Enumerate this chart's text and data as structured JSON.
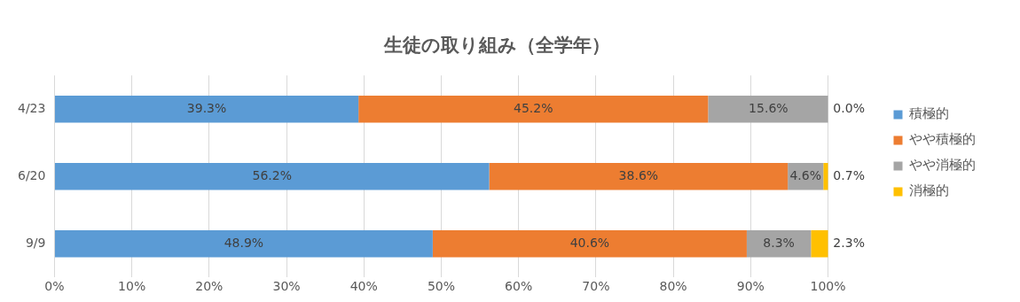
{
  "chart_data": {
    "type": "bar",
    "orientation": "horizontal",
    "stacked": true,
    "title": "生徒の取り組み（全学年）",
    "categories": [
      "4/23",
      "6/20",
      "9/9"
    ],
    "series": [
      {
        "name": "積極的",
        "color": "#5b9bd5",
        "values": [
          39.3,
          56.2,
          48.9
        ],
        "value_labels": [
          "39.3%",
          "56.2%",
          "48.9%"
        ]
      },
      {
        "name": "やや積極的",
        "color": "#ed7d31",
        "values": [
          45.2,
          38.6,
          40.6
        ],
        "value_labels": [
          "45.2%",
          "38.6%",
          "40.6%"
        ]
      },
      {
        "name": "やや消極的",
        "color": "#a5a5a5",
        "values": [
          15.6,
          4.6,
          8.3
        ],
        "value_labels": [
          "15.6%",
          "4.6%",
          "8.3%"
        ]
      },
      {
        "name": "消極的",
        "color": "#ffc000",
        "values": [
          0.0,
          0.7,
          2.3
        ],
        "value_labels": [
          "0.0%",
          "0.7%",
          "2.3%"
        ]
      }
    ],
    "xlim": [
      0,
      100
    ],
    "xticks": [
      {
        "value": 0,
        "label": "0%"
      },
      {
        "value": 10,
        "label": "10%"
      },
      {
        "value": 20,
        "label": "20%"
      },
      {
        "value": 30,
        "label": "30%"
      },
      {
        "value": 40,
        "label": "40%"
      },
      {
        "value": 50,
        "label": "50%"
      },
      {
        "value": 60,
        "label": "60%"
      },
      {
        "value": 70,
        "label": "70%"
      },
      {
        "value": 80,
        "label": "80%"
      },
      {
        "value": 90,
        "label": "90%"
      },
      {
        "value": 100,
        "label": "100%"
      }
    ],
    "grid": "x",
    "legend": "right"
  }
}
